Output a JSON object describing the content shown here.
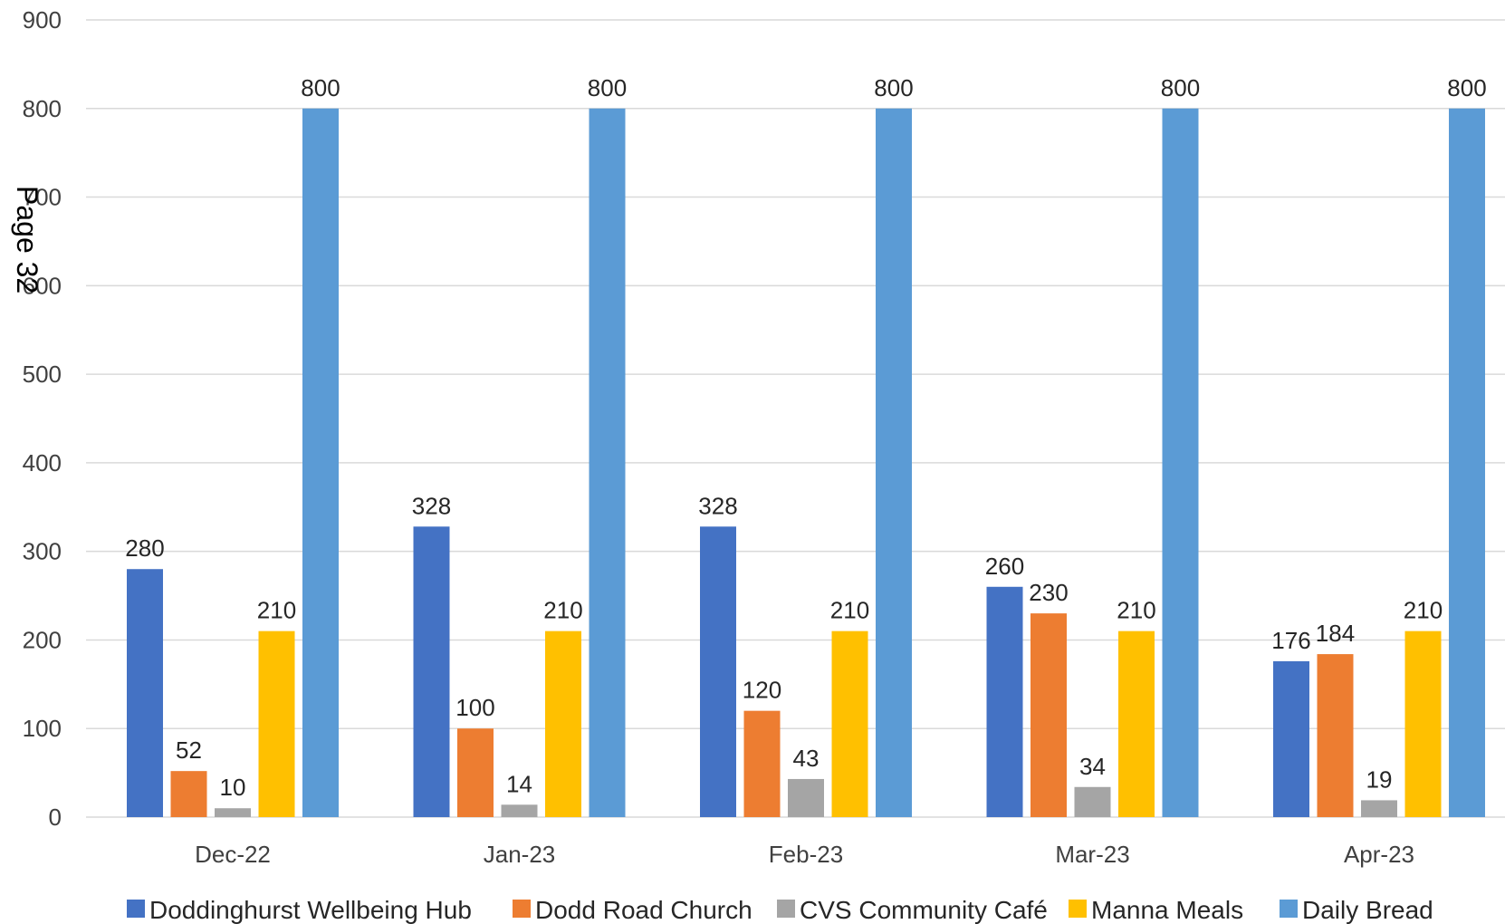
{
  "page_stamp": "Page 32",
  "chart_data": {
    "type": "bar",
    "title": "",
    "xlabel": "",
    "ylabel": "",
    "categories": [
      "Dec-22",
      "Jan-23",
      "Feb-23",
      "Mar-23",
      "Apr-23"
    ],
    "ylim": [
      0,
      900
    ],
    "yticks": [
      0,
      100,
      200,
      300,
      400,
      500,
      600,
      700,
      800,
      900
    ],
    "grid": true,
    "legend_position": "bottom",
    "data_labels": true,
    "series": [
      {
        "name": "Doddinghurst Wellbeing Hub",
        "color": "#4472c4",
        "values": [
          280,
          328,
          328,
          260,
          176
        ]
      },
      {
        "name": "Dodd Road Church",
        "color": "#ed7d31",
        "values": [
          52,
          100,
          120,
          230,
          184
        ]
      },
      {
        "name": "CVS Community Café",
        "color": "#a5a5a5",
        "values": [
          10,
          14,
          43,
          34,
          19
        ]
      },
      {
        "name": "Manna Meals",
        "color": "#ffc000",
        "values": [
          210,
          210,
          210,
          210,
          210
        ]
      },
      {
        "name": "Daily Bread",
        "color": "#5b9bd5",
        "values": [
          800,
          800,
          800,
          800,
          800
        ]
      }
    ]
  }
}
